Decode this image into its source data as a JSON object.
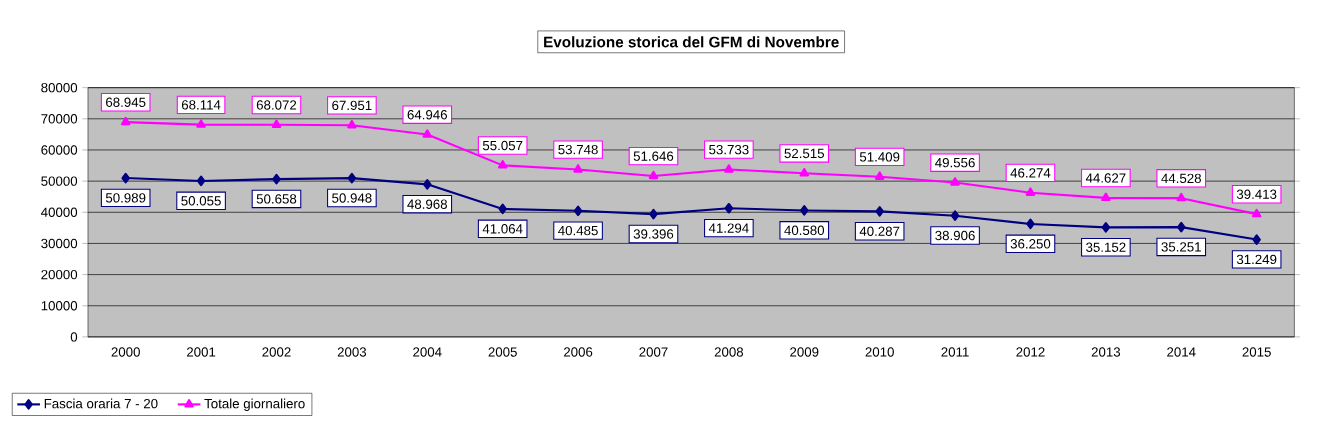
{
  "chart_data": {
    "type": "line",
    "title": "Evoluzione storica del GFM di Novembre",
    "categories": [
      "2000",
      "2001",
      "2002",
      "2003",
      "2004",
      "2005",
      "2006",
      "2007",
      "2008",
      "2009",
      "2010",
      "2011",
      "2012",
      "2013",
      "2014",
      "2015"
    ],
    "series": [
      {
        "name": "Fascia oraria 7 - 20",
        "color": "#000080",
        "marker": "diamond",
        "values": [
          50989,
          50055,
          50658,
          50948,
          48968,
          41064,
          40485,
          39396,
          41294,
          40580,
          40287,
          38906,
          36250,
          35152,
          35251,
          31249
        ],
        "value_labels": [
          "50.989",
          "50.055",
          "50.658",
          "50.948",
          "48.968",
          "41.064",
          "40.485",
          "39.396",
          "41.294",
          "40.580",
          "40.287",
          "38.906",
          "36.250",
          "35.152",
          "35.251",
          "31.249"
        ]
      },
      {
        "name": "Totale giornaliero",
        "color": "#ff00ff",
        "marker": "triangle",
        "values": [
          68945,
          68114,
          68072,
          67951,
          64946,
          55057,
          53748,
          51646,
          53733,
          52515,
          51409,
          49556,
          46274,
          44627,
          44528,
          39413
        ],
        "value_labels": [
          "68.945",
          "68.114",
          "68.072",
          "67.951",
          "64.946",
          "55.057",
          "53.748",
          "51.646",
          "53.733",
          "52.515",
          "51.409",
          "49.556",
          "46.274",
          "44.627",
          "44.528",
          "39.413"
        ]
      }
    ],
    "ylim": [
      0,
      80000
    ],
    "yticks": [
      0,
      10000,
      20000,
      30000,
      40000,
      50000,
      60000,
      70000,
      80000
    ],
    "grid": "y",
    "legend": "bottom left"
  }
}
